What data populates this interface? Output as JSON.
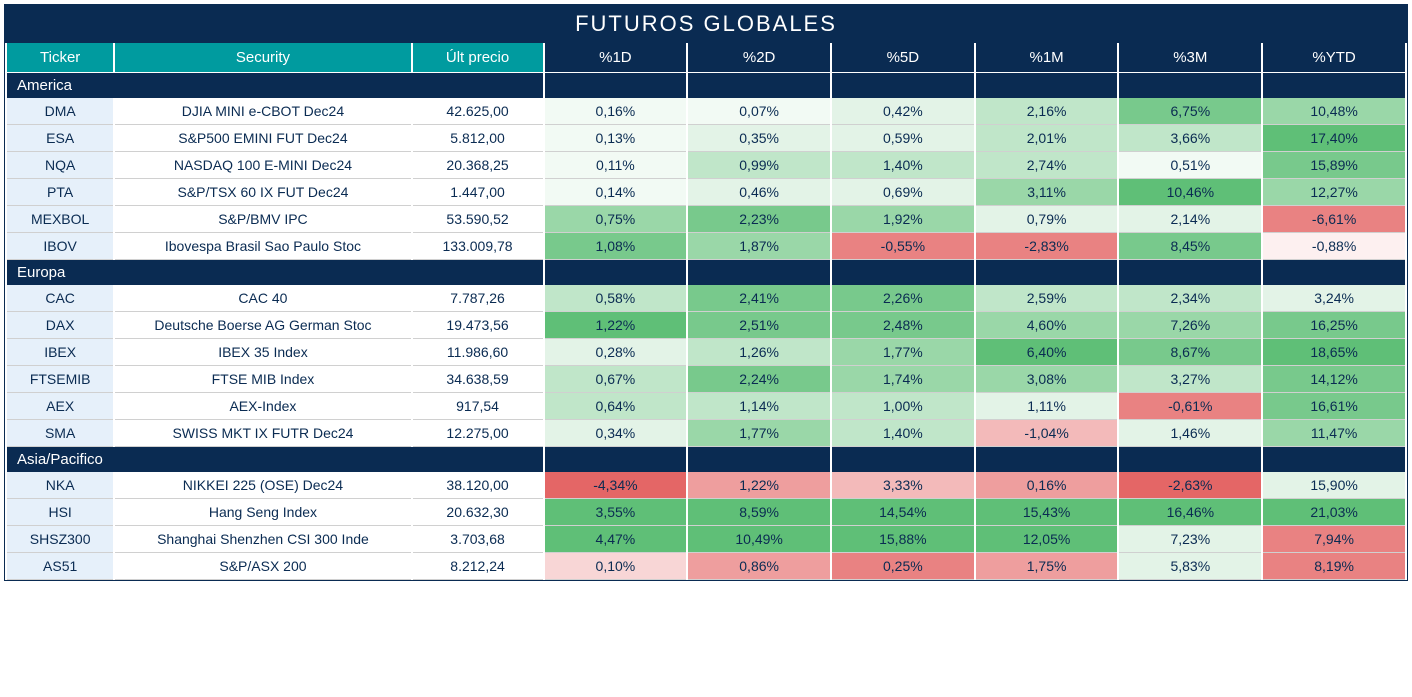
{
  "title": "FUTUROS GLOBALES",
  "columns": [
    "Ticker",
    "Security",
    "Últ precio",
    "%1D",
    "%2D",
    "%5D",
    "%1M",
    "%3M",
    "%YTD"
  ],
  "heat": {
    "pos5": "#5fbf77",
    "pos4": "#78c98c",
    "pos3": "#9ad7a8",
    "pos2": "#c0e6c9",
    "pos1": "#e3f3e7",
    "pos0": "#f2faf4",
    "neg0": "#fdf0f0",
    "neg1": "#f8d6d6",
    "neg2": "#f3baba",
    "neg3": "#ee9e9e",
    "neg4": "#e98282",
    "neg5": "#e46666"
  },
  "sections": [
    {
      "name": "America",
      "rows": [
        {
          "t": "DMA",
          "s": "DJIA MINI e-CBOT  Dec24",
          "p": "42.625,00",
          "c": [
            {
              "v": "0,16%",
              "h": "pos0"
            },
            {
              "v": "0,07%",
              "h": "pos0"
            },
            {
              "v": "0,42%",
              "h": "pos1"
            },
            {
              "v": "2,16%",
              "h": "pos2"
            },
            {
              "v": "6,75%",
              "h": "pos4"
            },
            {
              "v": "10,48%",
              "h": "pos3"
            }
          ]
        },
        {
          "t": "ESA",
          "s": "S&P500 EMINI FUT  Dec24",
          "p": "5.812,00",
          "c": [
            {
              "v": "0,13%",
              "h": "pos0"
            },
            {
              "v": "0,35%",
              "h": "pos1"
            },
            {
              "v": "0,59%",
              "h": "pos1"
            },
            {
              "v": "2,01%",
              "h": "pos2"
            },
            {
              "v": "3,66%",
              "h": "pos2"
            },
            {
              "v": "17,40%",
              "h": "pos5"
            }
          ]
        },
        {
          "t": "NQA",
          "s": "NASDAQ 100 E-MINI Dec24",
          "p": "20.368,25",
          "c": [
            {
              "v": "0,11%",
              "h": "pos0"
            },
            {
              "v": "0,99%",
              "h": "pos2"
            },
            {
              "v": "1,40%",
              "h": "pos2"
            },
            {
              "v": "2,74%",
              "h": "pos2"
            },
            {
              "v": "0,51%",
              "h": "pos0"
            },
            {
              "v": "15,89%",
              "h": "pos4"
            }
          ]
        },
        {
          "t": "PTA",
          "s": "S&P/TSX 60 IX FUT Dec24",
          "p": "1.447,00",
          "c": [
            {
              "v": "0,14%",
              "h": "pos0"
            },
            {
              "v": "0,46%",
              "h": "pos1"
            },
            {
              "v": "0,69%",
              "h": "pos1"
            },
            {
              "v": "3,11%",
              "h": "pos3"
            },
            {
              "v": "10,46%",
              "h": "pos5"
            },
            {
              "v": "12,27%",
              "h": "pos3"
            }
          ]
        },
        {
          "t": "MEXBOL",
          "s": "S&P/BMV IPC",
          "p": "53.590,52",
          "c": [
            {
              "v": "0,75%",
              "h": "pos3"
            },
            {
              "v": "2,23%",
              "h": "pos4"
            },
            {
              "v": "1,92%",
              "h": "pos3"
            },
            {
              "v": "0,79%",
              "h": "pos1"
            },
            {
              "v": "2,14%",
              "h": "pos1"
            },
            {
              "v": "-6,61%",
              "h": "neg4"
            }
          ]
        },
        {
          "t": "IBOV",
          "s": "Ibovespa Brasil Sao Paulo Stoc",
          "p": "133.009,78",
          "c": [
            {
              "v": "1,08%",
              "h": "pos4"
            },
            {
              "v": "1,87%",
              "h": "pos3"
            },
            {
              "v": "-0,55%",
              "h": "neg4"
            },
            {
              "v": "-2,83%",
              "h": "neg4"
            },
            {
              "v": "8,45%",
              "h": "pos4"
            },
            {
              "v": "-0,88%",
              "h": "neg0"
            }
          ]
        }
      ]
    },
    {
      "name": "Europa",
      "rows": [
        {
          "t": "CAC",
          "s": "CAC 40",
          "p": "7.787,26",
          "c": [
            {
              "v": "0,58%",
              "h": "pos2"
            },
            {
              "v": "2,41%",
              "h": "pos4"
            },
            {
              "v": "2,26%",
              "h": "pos4"
            },
            {
              "v": "2,59%",
              "h": "pos2"
            },
            {
              "v": "2,34%",
              "h": "pos2"
            },
            {
              "v": "3,24%",
              "h": "pos1"
            }
          ]
        },
        {
          "t": "DAX",
          "s": "Deutsche Boerse AG German Stoc",
          "p": "19.473,56",
          "c": [
            {
              "v": "1,22%",
              "h": "pos5"
            },
            {
              "v": "2,51%",
              "h": "pos4"
            },
            {
              "v": "2,48%",
              "h": "pos4"
            },
            {
              "v": "4,60%",
              "h": "pos3"
            },
            {
              "v": "7,26%",
              "h": "pos3"
            },
            {
              "v": "16,25%",
              "h": "pos4"
            }
          ]
        },
        {
          "t": "IBEX",
          "s": "IBEX 35 Index",
          "p": "11.986,60",
          "c": [
            {
              "v": "0,28%",
              "h": "pos1"
            },
            {
              "v": "1,26%",
              "h": "pos2"
            },
            {
              "v": "1,77%",
              "h": "pos3"
            },
            {
              "v": "6,40%",
              "h": "pos5"
            },
            {
              "v": "8,67%",
              "h": "pos4"
            },
            {
              "v": "18,65%",
              "h": "pos5"
            }
          ]
        },
        {
          "t": "FTSEMIB",
          "s": "FTSE MIB Index",
          "p": "34.638,59",
          "c": [
            {
              "v": "0,67%",
              "h": "pos2"
            },
            {
              "v": "2,24%",
              "h": "pos4"
            },
            {
              "v": "1,74%",
              "h": "pos3"
            },
            {
              "v": "3,08%",
              "h": "pos3"
            },
            {
              "v": "3,27%",
              "h": "pos2"
            },
            {
              "v": "14,12%",
              "h": "pos4"
            }
          ]
        },
        {
          "t": "AEX",
          "s": "AEX-Index",
          "p": "917,54",
          "c": [
            {
              "v": "0,64%",
              "h": "pos2"
            },
            {
              "v": "1,14%",
              "h": "pos2"
            },
            {
              "v": "1,00%",
              "h": "pos2"
            },
            {
              "v": "1,11%",
              "h": "pos1"
            },
            {
              "v": "-0,61%",
              "h": "neg4"
            },
            {
              "v": "16,61%",
              "h": "pos4"
            }
          ]
        },
        {
          "t": "SMA",
          "s": "SWISS MKT IX FUTR Dec24",
          "p": "12.275,00",
          "c": [
            {
              "v": "0,34%",
              "h": "pos1"
            },
            {
              "v": "1,77%",
              "h": "pos3"
            },
            {
              "v": "1,40%",
              "h": "pos2"
            },
            {
              "v": "-1,04%",
              "h": "neg2"
            },
            {
              "v": "1,46%",
              "h": "pos1"
            },
            {
              "v": "11,47%",
              "h": "pos3"
            }
          ]
        }
      ]
    },
    {
      "name": "Asia/Pacifico",
      "rows": [
        {
          "t": "NKA",
          "s": "NIKKEI 225  (OSE) Dec24",
          "p": "38.120,00",
          "c": [
            {
              "v": "-4,34%",
              "h": "neg5"
            },
            {
              "v": "1,22%",
              "h": "neg3"
            },
            {
              "v": "3,33%",
              "h": "neg2"
            },
            {
              "v": "0,16%",
              "h": "neg3"
            },
            {
              "v": "-2,63%",
              "h": "neg5"
            },
            {
              "v": "15,90%",
              "h": "pos1"
            }
          ]
        },
        {
          "t": "HSI",
          "s": "Hang Seng Index",
          "p": "20.632,30",
          "c": [
            {
              "v": "3,55%",
              "h": "pos5"
            },
            {
              "v": "8,59%",
              "h": "pos5"
            },
            {
              "v": "14,54%",
              "h": "pos5"
            },
            {
              "v": "15,43%",
              "h": "pos5"
            },
            {
              "v": "16,46%",
              "h": "pos5"
            },
            {
              "v": "21,03%",
              "h": "pos5"
            }
          ]
        },
        {
          "t": "SHSZ300",
          "s": "Shanghai Shenzhen CSI 300 Inde",
          "p": "3.703,68",
          "c": [
            {
              "v": "4,47%",
              "h": "pos5"
            },
            {
              "v": "10,49%",
              "h": "pos5"
            },
            {
              "v": "15,88%",
              "h": "pos5"
            },
            {
              "v": "12,05%",
              "h": "pos5"
            },
            {
              "v": "7,23%",
              "h": "pos1"
            },
            {
              "v": "7,94%",
              "h": "neg4"
            }
          ]
        },
        {
          "t": "AS51",
          "s": "S&P/ASX 200",
          "p": "8.212,24",
          "c": [
            {
              "v": "0,10%",
              "h": "neg1"
            },
            {
              "v": "0,86%",
              "h": "neg3"
            },
            {
              "v": "0,25%",
              "h": "neg4"
            },
            {
              "v": "1,75%",
              "h": "neg3"
            },
            {
              "v": "5,83%",
              "h": "pos1"
            },
            {
              "v": "8,19%",
              "h": "neg4"
            }
          ]
        }
      ]
    }
  ]
}
